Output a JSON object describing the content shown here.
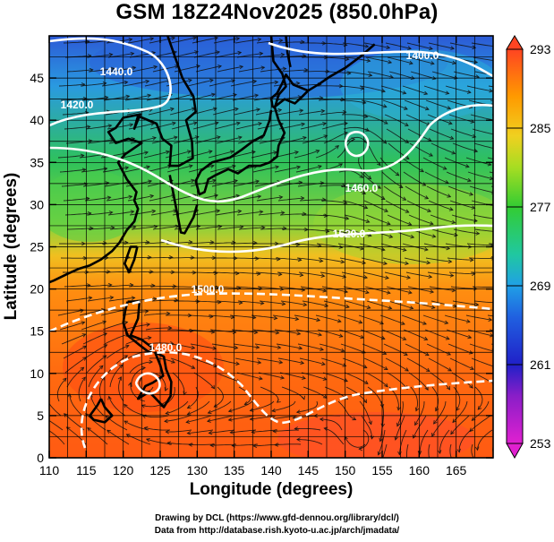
{
  "title": "GSM 18Z24Nov2025 (850.0hPa)",
  "x_axis": {
    "label": "Longitude (degrees)",
    "range": [
      110,
      170
    ],
    "ticks": [
      "110",
      "115",
      "120",
      "125",
      "130",
      "135",
      "140",
      "145",
      "150",
      "155",
      "160",
      "165"
    ]
  },
  "y_axis": {
    "label": "Latitude  (degrees)",
    "range": [
      0,
      50
    ],
    "ticks": [
      "0",
      "5",
      "10",
      "15",
      "20",
      "25",
      "30",
      "35",
      "40",
      "45"
    ]
  },
  "colorbar": {
    "ticks": [
      "253",
      "261",
      "269",
      "277",
      "285",
      "293"
    ],
    "range": [
      253,
      293
    ],
    "colors": [
      "#d41ad4",
      "#2020c8",
      "#20a0e6",
      "#33cc33",
      "#ccdd22",
      "#ff9a00",
      "#ff4422"
    ]
  },
  "contour_labels": [
    "1440.0",
    "1400.0",
    "1420.0",
    "1460.0",
    "1520.0",
    "1500.0",
    "1480.0"
  ],
  "credits": {
    "line1": "Drawing by DCL (https://www.gfd-dennou.org/library/dcl/)",
    "line2": "Data from http://database.rish.kyoto-u.ac.jp/arch/jmadata/"
  }
}
